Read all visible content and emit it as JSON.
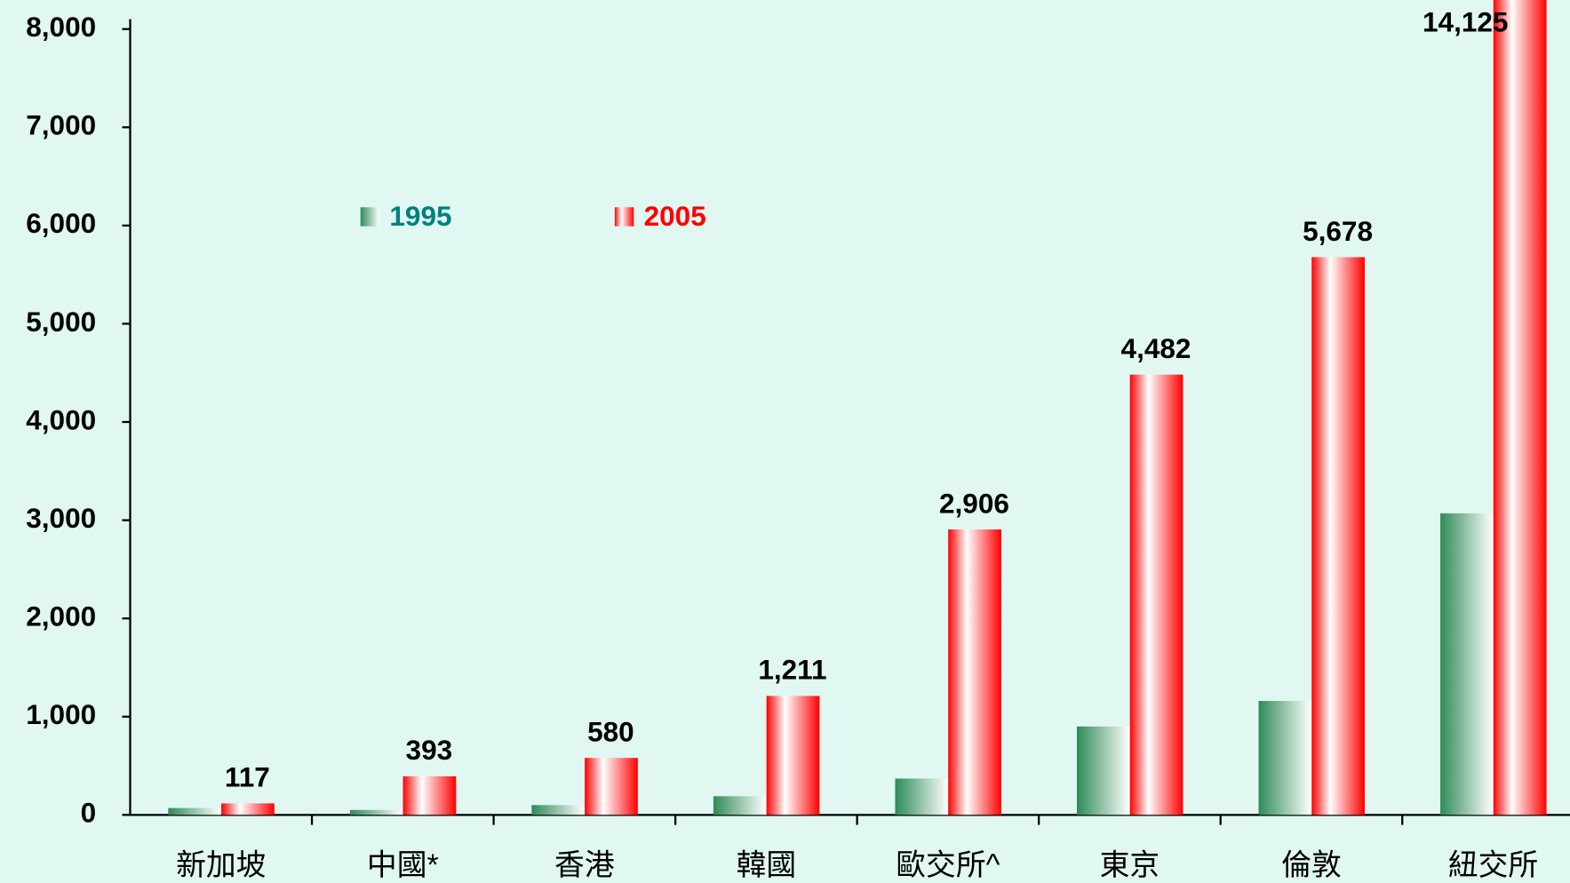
{
  "chart_data": {
    "type": "bar",
    "categories": [
      "新加坡",
      "中國*",
      "香港",
      "韓國",
      "歐交所^",
      "東京",
      "倫敦",
      "紐交所"
    ],
    "series": [
      {
        "name": "1995",
        "color": "#2e8b57",
        "values": [
          70,
          50,
          100,
          190,
          370,
          900,
          1160,
          3070
        ]
      },
      {
        "name": "2005",
        "color": "#ff0000",
        "values": [
          117,
          393,
          580,
          1211,
          2906,
          4482,
          5678,
          14125
        ],
        "value_labels": [
          "117",
          "393",
          "580",
          "1,211",
          "2,906",
          "4,482",
          "5,678",
          "14,125"
        ]
      }
    ],
    "legend_colors": [
      "#008080",
      "#ff0000"
    ],
    "ylim": [
      0,
      8000
    ],
    "yticks": [
      0,
      {
        "value": 1000,
        "label": "1,000"
      },
      {
        "value": 2000,
        "label": "2,000"
      },
      {
        "value": 3000,
        "label": "3,000"
      },
      {
        "value": 4000,
        "label": "4,000"
      },
      {
        "value": 5000,
        "label": "5,000"
      },
      {
        "value": 6000,
        "label": "6,000"
      },
      {
        "value": 7000,
        "label": "7,000"
      },
      {
        "value": 8000,
        "label": "8,000"
      }
    ]
  }
}
